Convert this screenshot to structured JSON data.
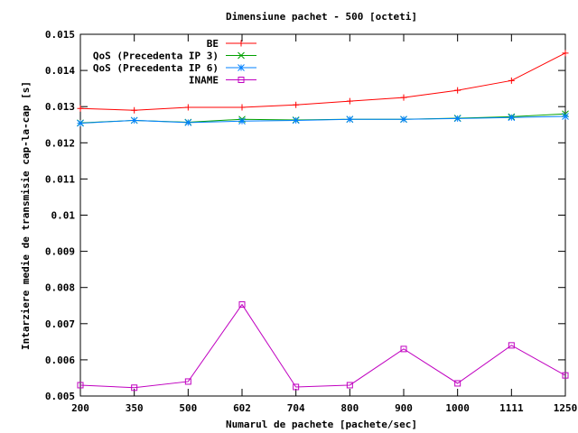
{
  "chart_data": {
    "type": "line",
    "title": "Dimensiune pachet - 500 [octeti]",
    "xlabel": "Numarul de pachete [pachete/sec]",
    "ylabel": "Intarziere medie de transmisie cap-la-cap [s]",
    "categories": [
      "200",
      "350",
      "500",
      "602",
      "704",
      "800",
      "900",
      "1000",
      "1111",
      "1250"
    ],
    "ylim": [
      0.005,
      0.015
    ],
    "yticks": [
      "0.005",
      "0.006",
      "0.007",
      "0.008",
      "0.009",
      "0.01",
      "0.011",
      "0.012",
      "0.013",
      "0.014",
      "0.015"
    ],
    "grid": false,
    "legend_position": "top-right",
    "series": [
      {
        "name": "BE",
        "color": "#ff0000",
        "marker": "plus",
        "values": [
          0.01295,
          0.0129,
          0.01298,
          0.01298,
          0.01305,
          0.01315,
          0.01325,
          0.01345,
          0.01372,
          0.01448
        ]
      },
      {
        "name": "QoS (Precedenta IP 3)",
        "color": "#00a000",
        "marker": "x",
        "values": [
          0.01255,
          0.01262,
          0.01257,
          0.01265,
          0.01263,
          0.01265,
          0.01265,
          0.01268,
          0.01272,
          0.0128
        ]
      },
      {
        "name": "QoS (Precedenta IP 6)",
        "color": "#0080ff",
        "marker": "star",
        "values": [
          0.01254,
          0.01262,
          0.01256,
          0.0126,
          0.01262,
          0.01265,
          0.01265,
          0.01267,
          0.0127,
          0.01273
        ]
      },
      {
        "name": "INAME",
        "color": "#c000c0",
        "marker": "square",
        "values": [
          0.0053,
          0.00523,
          0.0054,
          0.00753,
          0.00525,
          0.0053,
          0.0063,
          0.00535,
          0.0064,
          0.00557
        ]
      }
    ]
  }
}
